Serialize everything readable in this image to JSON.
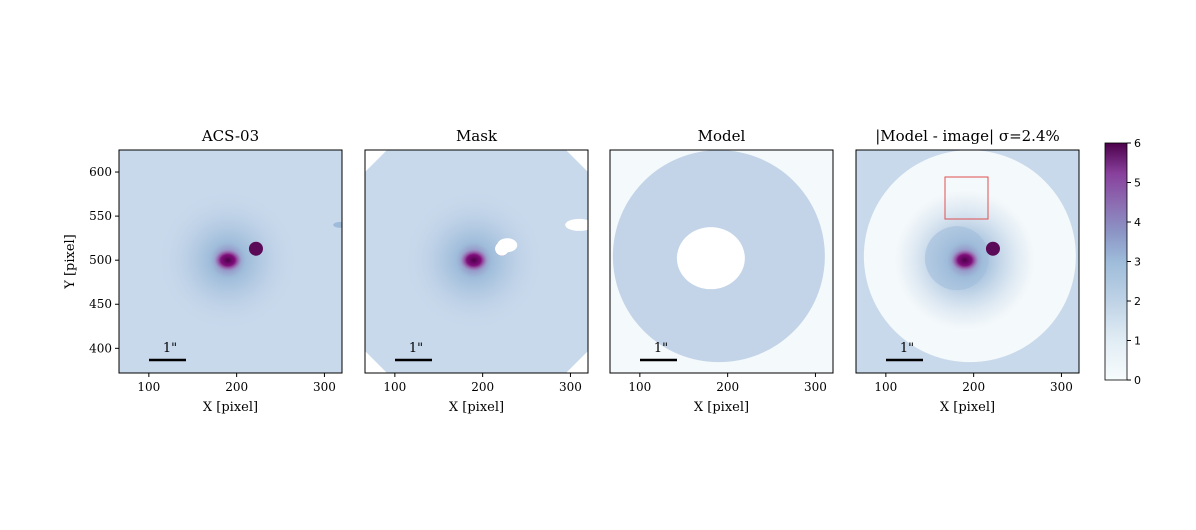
{
  "chart_data": [
    {
      "type": "image",
      "title": "ACS-03",
      "xlabel": "X [pixel]",
      "ylabel": "Y [pixel]",
      "scalebar_label": "1\"",
      "xlim": [
        66,
        320
      ],
      "ylim": [
        372,
        625
      ],
      "xticks": [
        100,
        200,
        300
      ],
      "yticks": [
        400,
        450,
        500,
        550,
        600
      ]
    },
    {
      "type": "image",
      "title": "Mask",
      "xlabel": "X [pixel]",
      "scalebar_label": "1\"",
      "xlim": [
        66,
        320
      ],
      "ylim": [
        372,
        625
      ],
      "xticks": [
        100,
        200,
        300
      ]
    },
    {
      "type": "image",
      "title": "Model",
      "xlabel": "X [pixel]",
      "scalebar_label": "1\"",
      "xlim": [
        66,
        320
      ],
      "ylim": [
        372,
        625
      ],
      "xticks": [
        100,
        200,
        300
      ]
    },
    {
      "type": "image",
      "title": "|Model - image| σ=2.4%",
      "xlabel": "X [pixel]",
      "scalebar_label": "1\"",
      "xlim": [
        66,
        320
      ],
      "ylim": [
        372,
        625
      ],
      "xticks": [
        100,
        200,
        300
      ],
      "colorbar": {
        "clim": [
          0,
          6
        ],
        "ticks": [
          0,
          1,
          2,
          3,
          4,
          5,
          6
        ]
      }
    }
  ]
}
